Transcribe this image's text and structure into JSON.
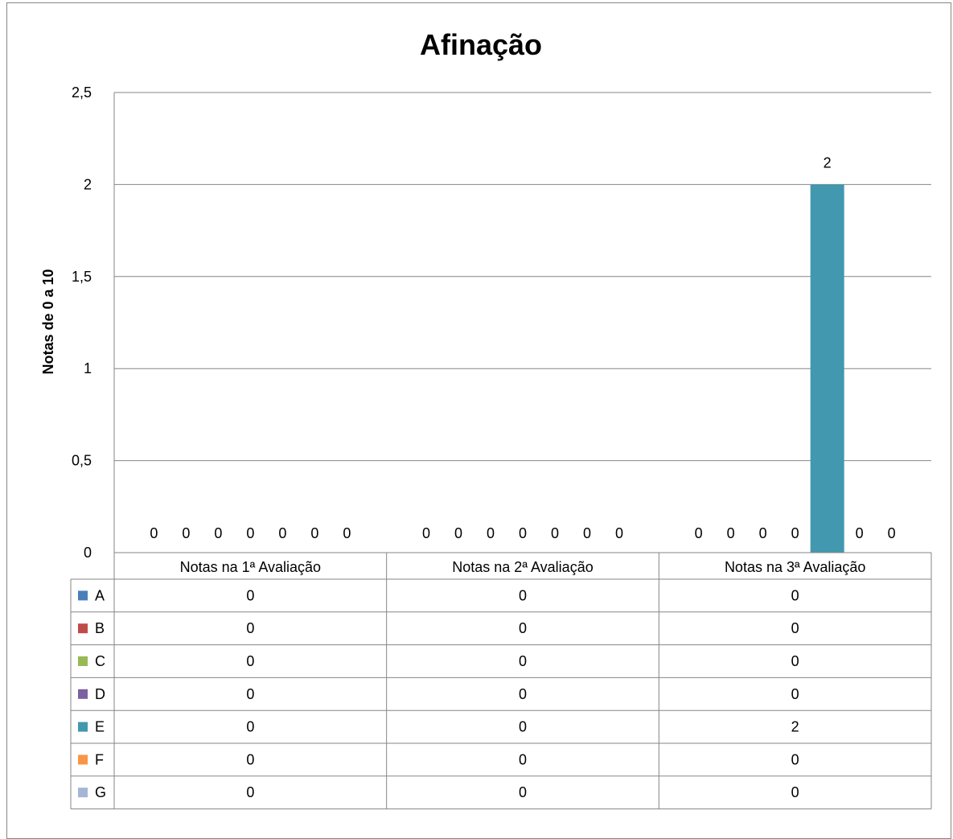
{
  "chart_data": {
    "type": "bar",
    "title": "Afinação",
    "xlabel": "",
    "ylabel": "Notas de 0 a 10",
    "ylim": [
      0,
      2.5
    ],
    "yticks": [
      "0",
      "0,5",
      "1",
      "1,5",
      "2",
      "2,5"
    ],
    "ytick_values": [
      0,
      0.5,
      1,
      1.5,
      2,
      2.5
    ],
    "grid": true,
    "legend": "data-table",
    "categories": [
      "Notas na 1ª Avaliação",
      "Notas na 2ª Avaliação",
      "Notas na 3ª Avaliação"
    ],
    "series": [
      {
        "name": "A",
        "color": "#4a7ebb",
        "values": [
          0,
          0,
          0
        ]
      },
      {
        "name": "B",
        "color": "#be4b48",
        "values": [
          0,
          0,
          0
        ]
      },
      {
        "name": "C",
        "color": "#98b954",
        "values": [
          0,
          0,
          0
        ]
      },
      {
        "name": "D",
        "color": "#7d60a0",
        "values": [
          0,
          0,
          0
        ]
      },
      {
        "name": "E",
        "color": "#4198af",
        "values": [
          0,
          0,
          2
        ]
      },
      {
        "name": "F",
        "color": "#f79646",
        "values": [
          0,
          0,
          0
        ]
      },
      {
        "name": "G",
        "color": "#a5b6d5",
        "values": [
          0,
          0,
          0
        ]
      }
    ],
    "data_labels": true
  }
}
